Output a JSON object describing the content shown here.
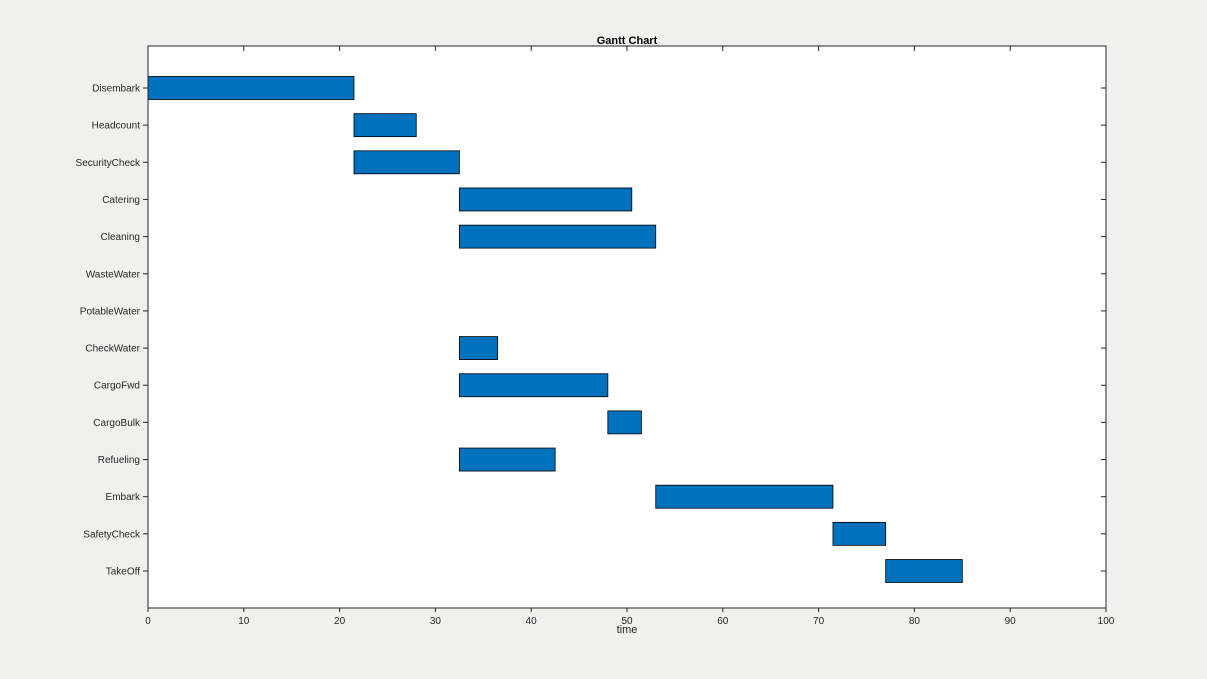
{
  "figure": {
    "background": "#f0f0ee",
    "plot_background": "#ffffff",
    "axis_color": "#262626"
  },
  "chart_data": {
    "type": "bar",
    "orientation": "horizontal",
    "title": "Gantt Chart",
    "xlabel": "time",
    "ylabel": "",
    "xlim": [
      0,
      100
    ],
    "x_ticks": [
      0,
      10,
      20,
      30,
      40,
      50,
      60,
      70,
      80,
      90,
      100
    ],
    "grid": false,
    "legend": null,
    "bar_color": "#0072BD",
    "bar_edge_color": "#000000",
    "tasks": [
      {
        "label": "Disembark",
        "start": 0,
        "end": 21.5
      },
      {
        "label": "Headcount",
        "start": 21.5,
        "end": 28
      },
      {
        "label": "SecurityCheck",
        "start": 21.5,
        "end": 32.5
      },
      {
        "label": "Catering",
        "start": 32.5,
        "end": 50.5
      },
      {
        "label": "Cleaning",
        "start": 32.5,
        "end": 53
      },
      {
        "label": "WasteWater",
        "start": null,
        "end": null
      },
      {
        "label": "PotableWater",
        "start": null,
        "end": null
      },
      {
        "label": "CheckWater",
        "start": 32.5,
        "end": 36.5
      },
      {
        "label": "CargoFwd",
        "start": 32.5,
        "end": 48
      },
      {
        "label": "CargoBulk",
        "start": 48,
        "end": 51.5
      },
      {
        "label": "Refueling",
        "start": 32.5,
        "end": 42.5
      },
      {
        "label": "Embark",
        "start": 53,
        "end": 71.5
      },
      {
        "label": "SafetyCheck",
        "start": 71.5,
        "end": 77
      },
      {
        "label": "TakeOff",
        "start": 77,
        "end": 85
      }
    ]
  }
}
